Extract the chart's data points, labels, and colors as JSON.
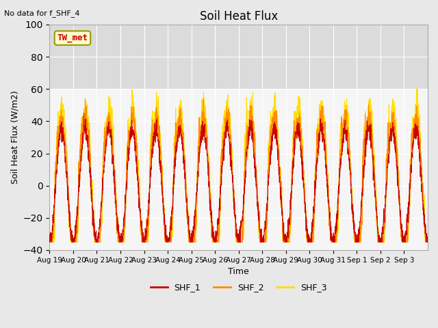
{
  "title": "Soil Heat Flux",
  "subtitle": "No data for f_SHF_4",
  "xlabel": "Time",
  "ylabel": "Soil Heat Flux (W/m2)",
  "ylim": [
    -40,
    100
  ],
  "yticks": [
    -40,
    -20,
    0,
    20,
    40,
    60,
    80,
    100
  ],
  "shaded_region": [
    60,
    100
  ],
  "legend_labels": [
    "SHF_1",
    "SHF_2",
    "SHF_3"
  ],
  "legend_colors": [
    "#cc0000",
    "#ff8c00",
    "#ffdd00"
  ],
  "inset_label": "TW_met",
  "inset_label_color": "#cc0000",
  "inset_bg_color": "#ffffcc",
  "inset_border_color": "#999900",
  "x_tick_labels": [
    "Aug 19",
    "Aug 20",
    "Aug 21",
    "Aug 22",
    "Aug 23",
    "Aug 24",
    "Aug 25",
    "Aug 26",
    "Aug 27",
    "Aug 28",
    "Aug 29",
    "Aug 30",
    "Aug 31",
    "Sep 1",
    "Sep 2",
    "Sep 3"
  ],
  "n_days": 16,
  "bg_color": "#e8e8e8",
  "plot_bg_color": "#f5f5f5"
}
